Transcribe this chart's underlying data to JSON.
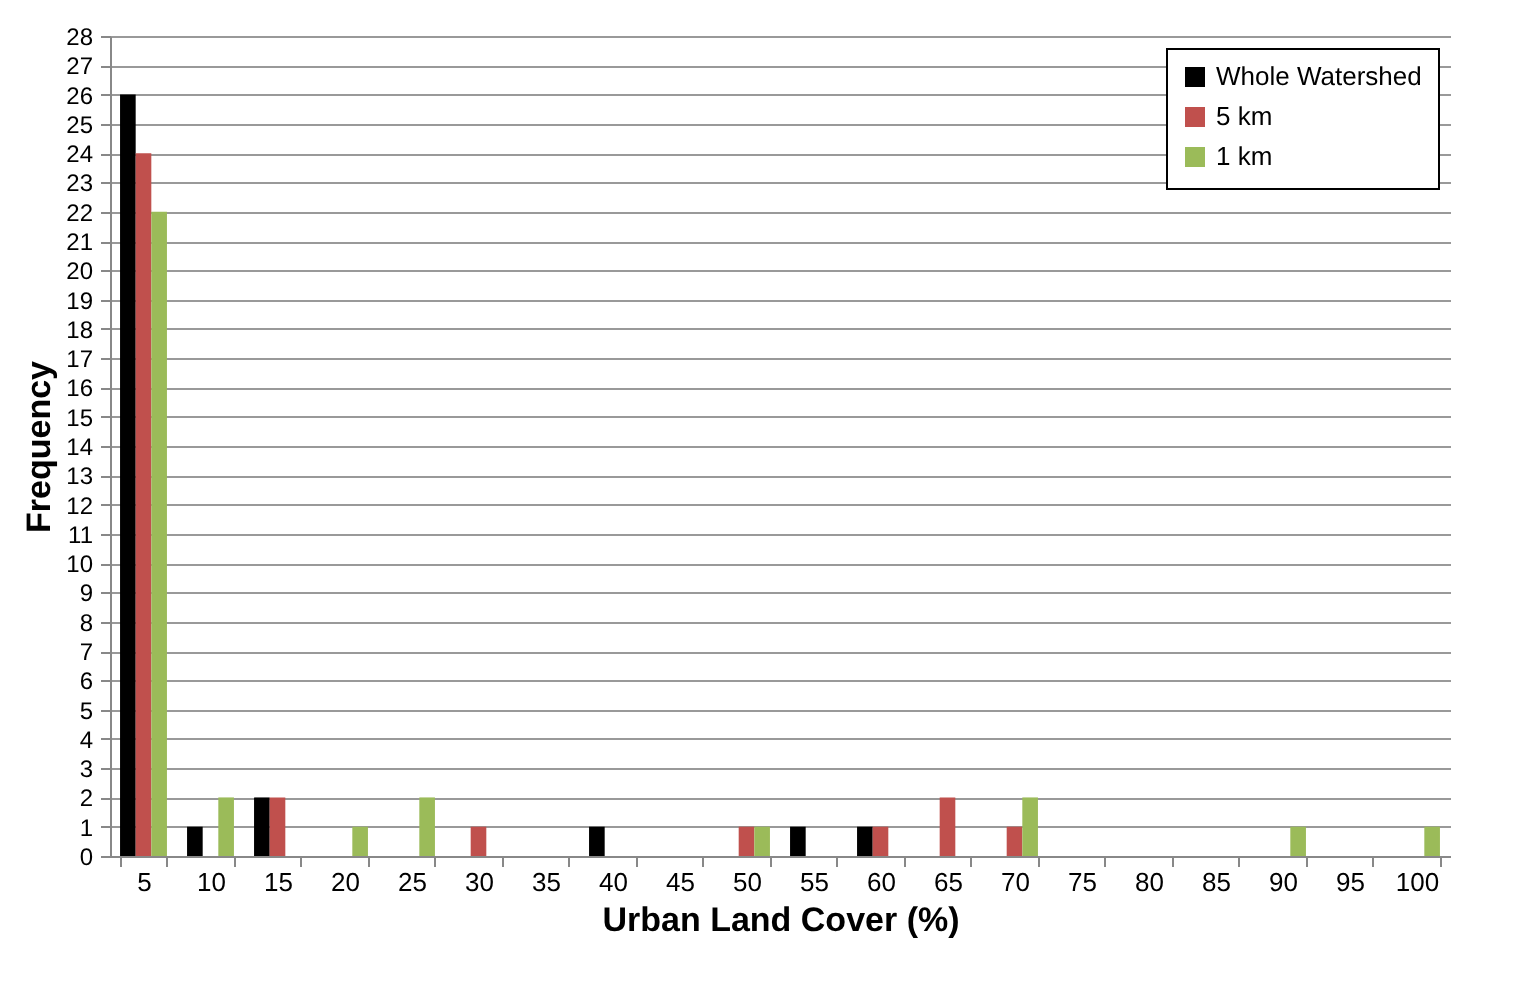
{
  "chart_data": {
    "type": "bar",
    "xlabel": "Urban Land Cover (%)",
    "ylabel": "Frequency",
    "categories": [
      "5",
      "10",
      "15",
      "20",
      "25",
      "30",
      "35",
      "40",
      "45",
      "50",
      "55",
      "60",
      "65",
      "70",
      "75",
      "80",
      "85",
      "90",
      "95",
      "100"
    ],
    "series": [
      {
        "name": "Whole Watershed",
        "color": "#000000",
        "values": [
          26,
          1,
          2,
          0,
          0,
          0,
          0,
          1,
          0,
          0,
          1,
          1,
          0,
          0,
          0,
          0,
          0,
          0,
          0,
          0
        ]
      },
      {
        "name": "5 km",
        "color": "#c0504d",
        "values": [
          24,
          0,
          2,
          0,
          0,
          1,
          0,
          0,
          0,
          1,
          0,
          1,
          2,
          1,
          0,
          0,
          0,
          0,
          0,
          0
        ]
      },
      {
        "name": "1 km",
        "color": "#9bbb59",
        "values": [
          22,
          2,
          0,
          1,
          2,
          0,
          0,
          0,
          0,
          1,
          0,
          0,
          0,
          2,
          0,
          0,
          0,
          1,
          0,
          1
        ]
      }
    ],
    "ylim": [
      0,
      28
    ],
    "yticks": [
      0,
      1,
      2,
      3,
      4,
      5,
      6,
      7,
      8,
      9,
      10,
      11,
      12,
      13,
      14,
      15,
      16,
      17,
      18,
      19,
      20,
      21,
      22,
      23,
      24,
      25,
      26,
      27,
      28
    ],
    "grid": "y",
    "legend": "top right"
  }
}
